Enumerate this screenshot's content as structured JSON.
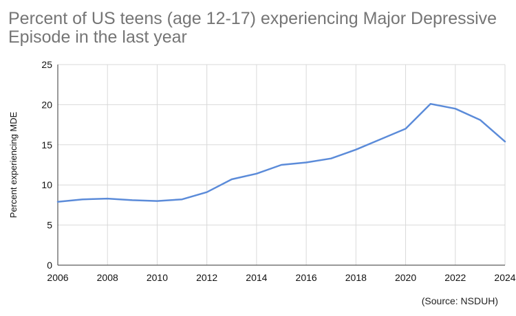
{
  "title": "Percent of US teens (age 12-17) experiencing Major Depressive Episode in the last year",
  "source": "(Source: NSDUH)",
  "chart_data": {
    "type": "line",
    "title": "Percent of US teens (age 12-17) experiencing Major Depressive Episode in the last year",
    "xlabel": "",
    "ylabel": "Percent experiencing MDE",
    "xlim": [
      2006,
      2024
    ],
    "ylim": [
      0,
      25
    ],
    "xticks": [
      2006,
      2008,
      2010,
      2012,
      2014,
      2016,
      2018,
      2020,
      2022,
      2024
    ],
    "yticks": [
      0,
      5,
      10,
      15,
      20,
      25
    ],
    "grid": true,
    "legend": "none",
    "series": [
      {
        "color": "#5b8bd9",
        "points": [
          {
            "x": 2006,
            "y": 7.9
          },
          {
            "x": 2007,
            "y": 8.2
          },
          {
            "x": 2008,
            "y": 8.3
          },
          {
            "x": 2009,
            "y": 8.1
          },
          {
            "x": 2010,
            "y": 8.0
          },
          {
            "x": 2011,
            "y": 8.2
          },
          {
            "x": 2012,
            "y": 9.1
          },
          {
            "x": 2013,
            "y": 10.7
          },
          {
            "x": 2014,
            "y": 11.4
          },
          {
            "x": 2015,
            "y": 12.5
          },
          {
            "x": 2016,
            "y": 12.8
          },
          {
            "x": 2017,
            "y": 13.3
          },
          {
            "x": 2018,
            "y": 14.4
          },
          {
            "x": 2019,
            "y": 15.7
          },
          {
            "x": 2020,
            "y": 17.0
          },
          {
            "x": 2021,
            "y": 20.1
          },
          {
            "x": 2022,
            "y": 19.5
          },
          {
            "x": 2023,
            "y": 18.1
          },
          {
            "x": 2024,
            "y": 15.4
          }
        ]
      }
    ]
  },
  "colors": {
    "line": "#5b8bd9",
    "grid": "#d9d9d9",
    "axis": "#333333",
    "title": "#757575",
    "tick_text": "#111111"
  }
}
